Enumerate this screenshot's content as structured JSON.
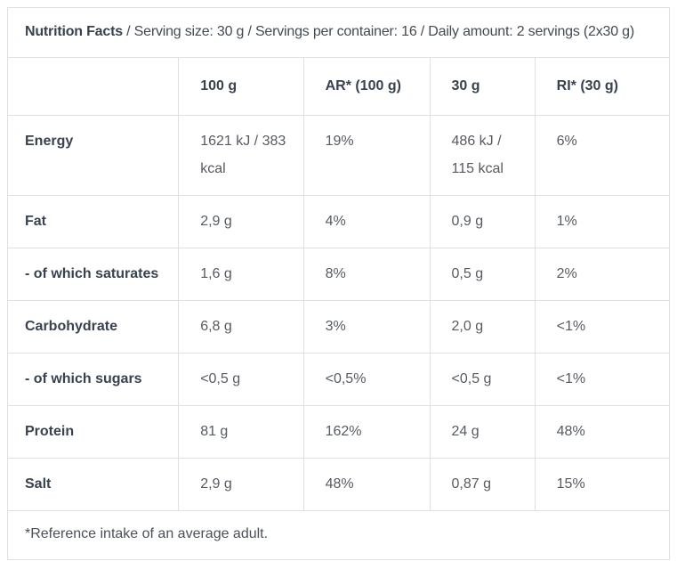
{
  "header": {
    "title": "Nutrition Facts",
    "details": " / Serving size: 30 g / Servings per container: 16 / Daily amount: 2 servings (2x30 g)"
  },
  "table": {
    "columns": [
      "",
      "100 g",
      "AR* (100 g)",
      "30 g",
      "RI* (30 g)"
    ],
    "rows": [
      {
        "label": "Energy",
        "per_100g": "1621 kJ / 383 kcal",
        "ar_100g": "19%",
        "per_30g": "486 kJ / 115 kcal",
        "ri_30g": "6%"
      },
      {
        "label": "Fat",
        "per_100g": "2,9 g",
        "ar_100g": "4%",
        "per_30g": "0,9 g",
        "ri_30g": "1%"
      },
      {
        "label": "- of which saturates",
        "per_100g": "1,6 g",
        "ar_100g": "8%",
        "per_30g": "0,5 g",
        "ri_30g": "2%"
      },
      {
        "label": "Carbohydrate",
        "per_100g": "6,8 g",
        "ar_100g": "3%",
        "per_30g": "2,0 g",
        "ri_30g": "<1%"
      },
      {
        "label": "- of which sugars",
        "per_100g": "<0,5 g",
        "ar_100g": "<0,5%",
        "per_30g": "<0,5 g",
        "ri_30g": "<1%"
      },
      {
        "label": "Protein",
        "per_100g": "81 g",
        "ar_100g": "162%",
        "per_30g": "24 g",
        "ri_30g": "48%"
      },
      {
        "label": "Salt",
        "per_100g": "2,9 g",
        "ar_100g": "48%",
        "per_30g": "0,87 g",
        "ri_30g": "15%"
      }
    ],
    "footnote": "*Reference intake of an average adult."
  },
  "colors": {
    "border": "#e0e0e0",
    "label_text": "#38434f",
    "value_text": "#565b61",
    "title_regular_text": "#434a52",
    "footnote_text": "#4b5158",
    "background": "#ffffff"
  }
}
